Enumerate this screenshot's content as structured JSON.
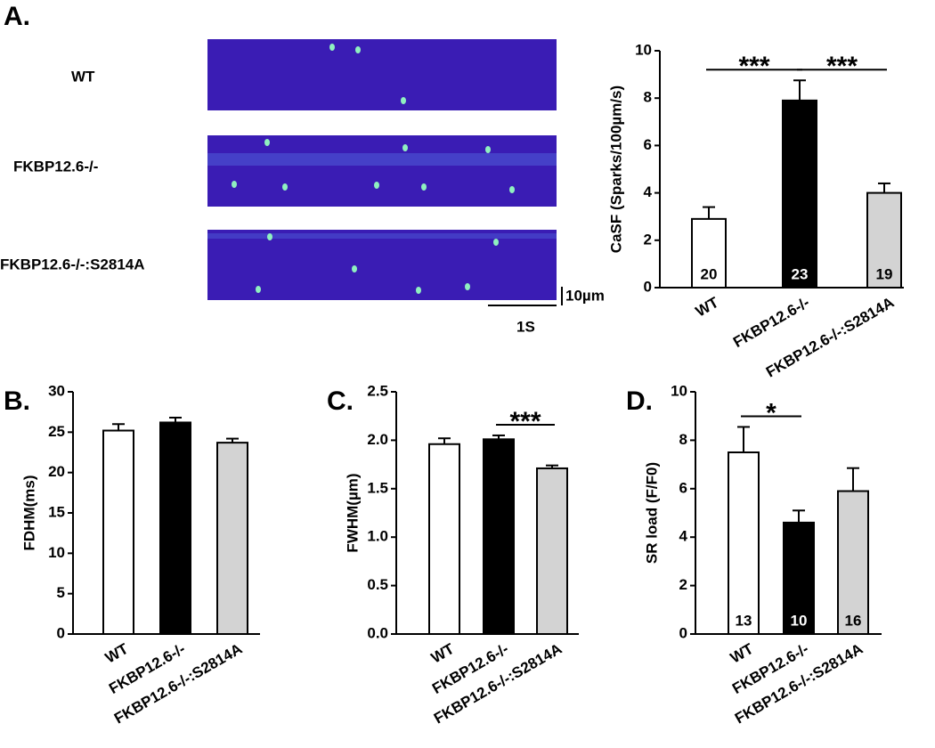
{
  "panel_a": {
    "label": "A.",
    "image_labels": [
      "WT",
      "FKBP12.6-/-",
      "FKBP12.6-/-:S2814A"
    ],
    "scale_x": "1S",
    "scale_y": "10µm"
  },
  "chart_data": [
    {
      "type": "bar",
      "panel": "",
      "y_label": "CaSF (Sparks/100µm/s)",
      "categories": [
        "WT",
        "FKBP12.6-/-",
        "FKBP12.6-/-:S2814A"
      ],
      "values": [
        2.9,
        7.9,
        4.0
      ],
      "errors": [
        0.5,
        0.85,
        0.4
      ],
      "n_labels": [
        "20",
        "23",
        "19"
      ],
      "colors": [
        "#ffffff",
        "#000000",
        "#d3d3d3"
      ],
      "n_label_colors": [
        "#000000",
        "#ffffff",
        "#000000"
      ],
      "ylim": [
        0,
        10
      ],
      "yticks": [
        0,
        2,
        4,
        6,
        8,
        10
      ],
      "significance": [
        {
          "from": 0,
          "to": 1,
          "label": "***"
        },
        {
          "from": 1,
          "to": 2,
          "label": "***"
        }
      ]
    },
    {
      "type": "bar",
      "panel": "B.",
      "y_label": "FDHM(ms)",
      "categories": [
        "WT",
        "FKBP12.6-/-",
        "FKBP12.6-/-:S2814A"
      ],
      "values": [
        25.2,
        26.2,
        23.7
      ],
      "errors": [
        0.8,
        0.6,
        0.5
      ],
      "colors": [
        "#ffffff",
        "#000000",
        "#d3d3d3"
      ],
      "ylim": [
        0,
        30
      ],
      "yticks": [
        0,
        5,
        10,
        15,
        20,
        25,
        30
      ],
      "significance": []
    },
    {
      "type": "bar",
      "panel": "C.",
      "y_label": "FWHM(µm)",
      "categories": [
        "WT",
        "FKBP12.6-/-",
        "FKBP12.6-/-:S2814A"
      ],
      "values": [
        1.96,
        2.01,
        1.71
      ],
      "errors": [
        0.06,
        0.04,
        0.03
      ],
      "colors": [
        "#ffffff",
        "#000000",
        "#d3d3d3"
      ],
      "ylim": [
        0,
        2.5
      ],
      "yticks": [
        {
          "value": 0,
          "label": "0.0"
        },
        0.5,
        {
          "value": 1,
          "label": "1.0"
        },
        1.5,
        {
          "value": 2,
          "label": "2.0"
        },
        2.5
      ],
      "significance": [
        {
          "from": 1,
          "to": 2,
          "label": "***"
        }
      ]
    },
    {
      "type": "bar",
      "panel": "D.",
      "y_label": "SR load (F/F0)",
      "categories": [
        "WT",
        "FKBP12.6-/-",
        "FKBP12.6-/-:S2814A"
      ],
      "values": [
        7.5,
        4.6,
        5.9
      ],
      "errors": [
        1.05,
        0.5,
        0.95
      ],
      "n_labels": [
        "13",
        "10",
        "16"
      ],
      "colors": [
        "#ffffff",
        "#000000",
        "#d3d3d3"
      ],
      "n_label_colors": [
        "#000000",
        "#ffffff",
        "#000000"
      ],
      "ylim": [
        0,
        10
      ],
      "yticks": [
        0,
        2,
        4,
        6,
        8,
        10
      ],
      "significance": [
        {
          "from": 0,
          "to": 1,
          "label": "*"
        }
      ]
    }
  ]
}
